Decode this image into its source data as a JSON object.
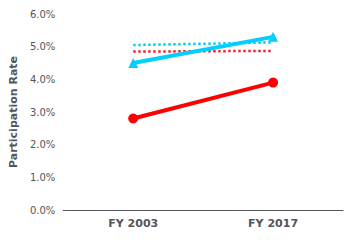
{
  "chart_data": {
    "type": "line",
    "categories": [
      "FY 2003",
      "FY 2017"
    ],
    "series": [
      {
        "color": "#00cfff",
        "values": [
          5.05,
          5.13
        ],
        "line_style": "dotted",
        "marker": "none"
      },
      {
        "color": "#ff2020",
        "values": [
          4.85,
          4.87
        ],
        "line_style": "dotted",
        "marker": "none"
      },
      {
        "color": "#00cfff",
        "values": [
          4.5,
          5.3
        ],
        "line_style": "solid",
        "marker": "triangle"
      },
      {
        "color": "#ff0000",
        "values": [
          2.8,
          3.9
        ],
        "line_style": "solid",
        "marker": "circle"
      }
    ],
    "ylabel": "Participation Rate",
    "ylim": [
      0.0,
      6.0
    ],
    "yticks": [
      {
        "value": 0.0,
        "label": "0.0%"
      },
      {
        "value": 1.0,
        "label": "1.0%"
      },
      {
        "value": 2.0,
        "label": "2.0%"
      },
      {
        "value": 3.0,
        "label": "3.0%"
      },
      {
        "value": 4.0,
        "label": "4.0%"
      },
      {
        "value": 5.0,
        "label": "5.0%"
      },
      {
        "value": 6.0,
        "label": "6.0%"
      }
    ],
    "grid": false
  }
}
